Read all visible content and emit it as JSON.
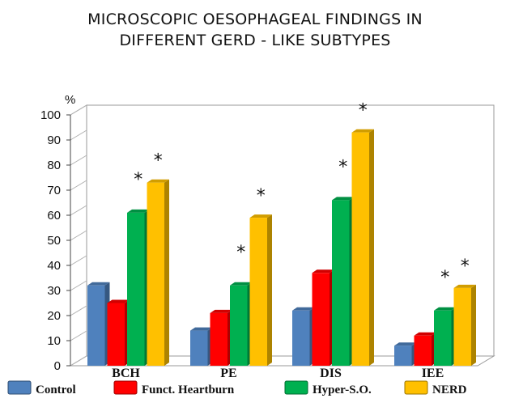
{
  "chart_data": {
    "type": "bar",
    "title": "MICROSCOPIC  OESOPHAGEAL  FINDINGS IN DIFFERENT  GERD - LIKE SUBTYPES",
    "title_lines": [
      "MICROSCOPIC  OESOPHAGEAL  FINDINGS IN",
      "DIFFERENT  GERD - LIKE SUBTYPES"
    ],
    "ylabel": "%",
    "xlabel": "",
    "ylim": [
      0,
      100
    ],
    "yticks": [
      "0",
      "10",
      "20",
      "30",
      "40",
      "50",
      "60",
      "70",
      "80",
      "90",
      "100"
    ],
    "categories": [
      "BCH",
      "PE",
      "DIS",
      "IEE"
    ],
    "series": [
      {
        "name": "Control",
        "values": [
          32,
          14,
          22,
          8
        ],
        "color": "#4f81bd"
      },
      {
        "name": "Funct. Heartburn",
        "values": [
          25,
          21,
          37,
          12
        ],
        "color": "#ff0000"
      },
      {
        "name": "Hyper-S.O.",
        "values": [
          61,
          32,
          66,
          22
        ],
        "color": "#00b050"
      },
      {
        "name": "NERD",
        "values": [
          73,
          59,
          93,
          31
        ],
        "color": "#ffc000"
      }
    ],
    "annotations": [
      {
        "text": "*",
        "category": "BCH",
        "series": "Hyper-S.O."
      },
      {
        "text": "*",
        "category": "BCH",
        "series": "NERD"
      },
      {
        "text": "*",
        "category": "PE",
        "series": "Hyper-S.O."
      },
      {
        "text": "*",
        "category": "PE",
        "series": "NERD"
      },
      {
        "text": "*",
        "category": "DIS",
        "series": "Hyper-S.O."
      },
      {
        "text": "*",
        "category": "DIS",
        "series": "NERD"
      },
      {
        "text": "*",
        "category": "IEE",
        "series": "Hyper-S.O."
      },
      {
        "text": "*",
        "category": "IEE",
        "series": "NERD"
      }
    ],
    "grid": false,
    "legend_position": "bottom"
  }
}
